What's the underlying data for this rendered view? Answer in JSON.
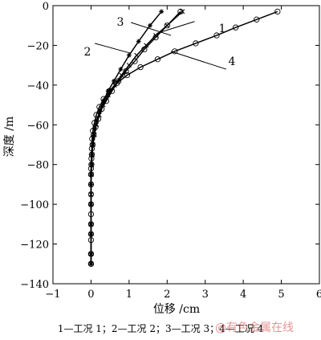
{
  "chart_data": {
    "type": "line",
    "xlabel": "位移 /cm",
    "ylabel": "深度 /m",
    "xlim": [
      -1,
      6
    ],
    "ylim": [
      -140,
      0
    ],
    "xticks": [
      -1,
      0,
      1,
      2,
      3,
      4,
      5,
      6
    ],
    "yticks": [
      0,
      -20,
      -40,
      -60,
      -80,
      -100,
      -120,
      -140
    ],
    "grid": false,
    "marker_styles": [
      "x",
      "star",
      "o",
      "o"
    ],
    "series": [
      {
        "name": "1",
        "x": [
          2.4,
          2.0,
          1.7,
          1.45,
          1.2,
          1.0,
          0.8,
          0.62,
          0.45,
          0.32,
          0.22,
          0.14,
          0.09,
          0.05,
          0.03,
          0.02,
          0.01,
          0.0,
          0.0,
          0.0,
          0.0,
          0.0,
          0.0,
          0.0
        ],
        "y": [
          -3,
          -10,
          -15,
          -20,
          -25,
          -30,
          -35,
          -40,
          -45,
          -50,
          -55,
          -60,
          -65,
          -70,
          -75,
          -80,
          -85,
          -90,
          -95,
          -100,
          -110,
          -115,
          -125,
          -130
        ]
      },
      {
        "name": "2",
        "x": [
          1.85,
          1.55,
          1.25,
          1.0,
          0.78,
          0.6,
          0.45,
          0.33,
          0.23,
          0.15,
          0.1,
          0.06,
          0.04,
          0.02,
          0.01,
          0.0,
          0.0,
          0.0,
          0.0,
          0.0,
          0.0,
          0.0
        ],
        "y": [
          -3,
          -10,
          -18,
          -25,
          -32,
          -38,
          -43,
          -48,
          -53,
          -58,
          -62,
          -66,
          -70,
          -75,
          -80,
          -85,
          -90,
          -100,
          -110,
          -115,
          -125,
          -130
        ]
      },
      {
        "name": "3",
        "x": [
          2.35,
          2.0,
          1.7,
          1.4,
          1.15,
          0.92,
          0.72,
          0.55,
          0.4,
          0.28,
          0.19,
          0.12,
          0.07,
          0.04,
          0.02,
          0.01,
          0.0,
          0.0,
          0.0,
          0.0,
          0.0,
          0.0
        ],
        "y": [
          -3,
          -10,
          -16,
          -22,
          -28,
          -33,
          -38,
          -43,
          -48,
          -52,
          -57,
          -61,
          -65,
          -70,
          -75,
          -80,
          -85,
          -95,
          -105,
          -115,
          -125,
          -130
        ]
      },
      {
        "name": "4",
        "x": [
          4.9,
          4.35,
          3.8,
          3.3,
          2.75,
          2.2,
          1.75,
          1.3,
          0.95,
          0.68,
          0.48,
          0.33,
          0.22,
          0.14,
          0.09,
          0.05,
          0.03,
          0.02,
          0.01,
          0.0,
          0.0,
          0.0,
          0.0,
          0.0,
          0.0,
          0.0
        ],
        "y": [
          -3,
          -7,
          -11,
          -15,
          -19,
          -23,
          -27,
          -31,
          -35,
          -39,
          -43,
          -47,
          -51,
          -55,
          -59,
          -63,
          -67,
          -72,
          -77,
          -82,
          -90,
          -100,
          -110,
          -118,
          -125,
          -130
        ]
      }
    ],
    "annotations": [
      "1",
      "2",
      "3",
      "4"
    ]
  },
  "caption": "1—工况 1；2—工况 2；3—工况 3；4—工况 4",
  "watermark": "@有色金属在线"
}
